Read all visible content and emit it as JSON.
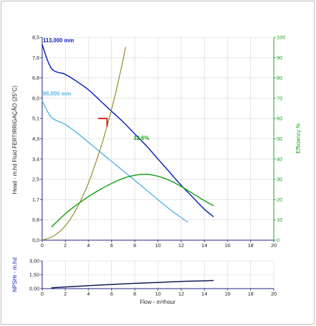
{
  "chart_data": [
    {
      "type": "line",
      "title": "",
      "xlabel": "",
      "ylabel": "Head - m.hd Fluid FERTIRRIGAÇÃO (25°C)",
      "y2label": "Efficiency %",
      "xlim": [
        0,
        20
      ],
      "ylim": [
        0,
        8.5
      ],
      "y2lim": [
        0,
        100
      ],
      "x_ticks": [
        "0",
        "2",
        "4",
        "6",
        "8",
        "10",
        "12",
        "14",
        "16",
        "18",
        "20"
      ],
      "y_ticks": [
        "0,0",
        "0,8",
        "1,7",
        "2,5",
        "3,4",
        "4,3",
        "5,1",
        "6,0",
        "6,8",
        "7,6",
        "8,5"
      ],
      "y2_ticks": [
        "0",
        "10",
        "20",
        "30",
        "40",
        "50",
        "60",
        "70",
        "80",
        "90",
        "100"
      ],
      "grid": true,
      "series": [
        {
          "name": "113,000 mm",
          "color": "#0a1fb8",
          "axis": "y",
          "x": [
            0,
            0.8,
            2,
            3,
            4,
            5,
            6,
            7,
            8,
            9,
            10,
            11,
            12,
            13,
            14,
            14.8
          ],
          "y": [
            8.2,
            7.2,
            6.95,
            6.65,
            6.3,
            5.85,
            5.4,
            4.95,
            4.45,
            3.95,
            3.4,
            2.85,
            2.3,
            1.8,
            1.3,
            0.98
          ]
        },
        {
          "name": "96,000 mm",
          "color": "#5bb7e6",
          "axis": "y",
          "x": [
            0,
            0.8,
            2,
            3,
            4,
            5,
            6,
            7,
            8,
            9,
            10,
            11,
            12,
            12.6
          ],
          "y": [
            5.85,
            5.15,
            4.85,
            4.5,
            4.1,
            3.7,
            3.3,
            2.9,
            2.5,
            2.1,
            1.7,
            1.3,
            0.95,
            0.75
          ]
        },
        {
          "name": "",
          "color": "#8b7d12",
          "axis": "y",
          "x": [
            0,
            1,
            2,
            3,
            4,
            5,
            5.5,
            6,
            6.5,
            7,
            7.2
          ],
          "y": [
            0,
            0.18,
            0.6,
            1.35,
            2.4,
            3.8,
            4.6,
            5.5,
            6.5,
            7.6,
            8.1
          ]
        },
        {
          "name": "32,6%",
          "color": "#15a315",
          "axis": "y2",
          "x": [
            0.8,
            2,
            3,
            4,
            5,
            6,
            7,
            8,
            9,
            10,
            11,
            12,
            13,
            14,
            14.8
          ],
          "y": [
            6.5,
            13,
            17.5,
            21.5,
            25,
            28,
            30.5,
            32,
            32.5,
            31.5,
            29.5,
            26.5,
            23,
            19.5,
            17
          ]
        }
      ],
      "annotations": [
        {
          "type": "operating-point-marker",
          "color": "#e01010",
          "x": 5.6,
          "y": 5.1
        }
      ]
    },
    {
      "type": "line",
      "title": "",
      "xlabel": "Flow - m³/hour",
      "ylabel": "NPSHr - m.hd",
      "xlim": [
        0,
        20
      ],
      "ylim": [
        0,
        3
      ],
      "x_ticks": [
        "0",
        "2",
        "4",
        "6",
        "8",
        "10",
        "12",
        "14",
        "16",
        "18",
        "20"
      ],
      "y_ticks": [
        "0,00",
        "1,50",
        "3,00"
      ],
      "grid": true,
      "series": [
        {
          "name": "",
          "color": "#0a1658",
          "x": [
            0.8,
            2,
            4,
            6,
            8,
            10,
            12,
            14,
            14.8
          ],
          "y": [
            0.08,
            0.18,
            0.32,
            0.45,
            0.57,
            0.67,
            0.78,
            0.85,
            0.87
          ]
        }
      ]
    }
  ]
}
